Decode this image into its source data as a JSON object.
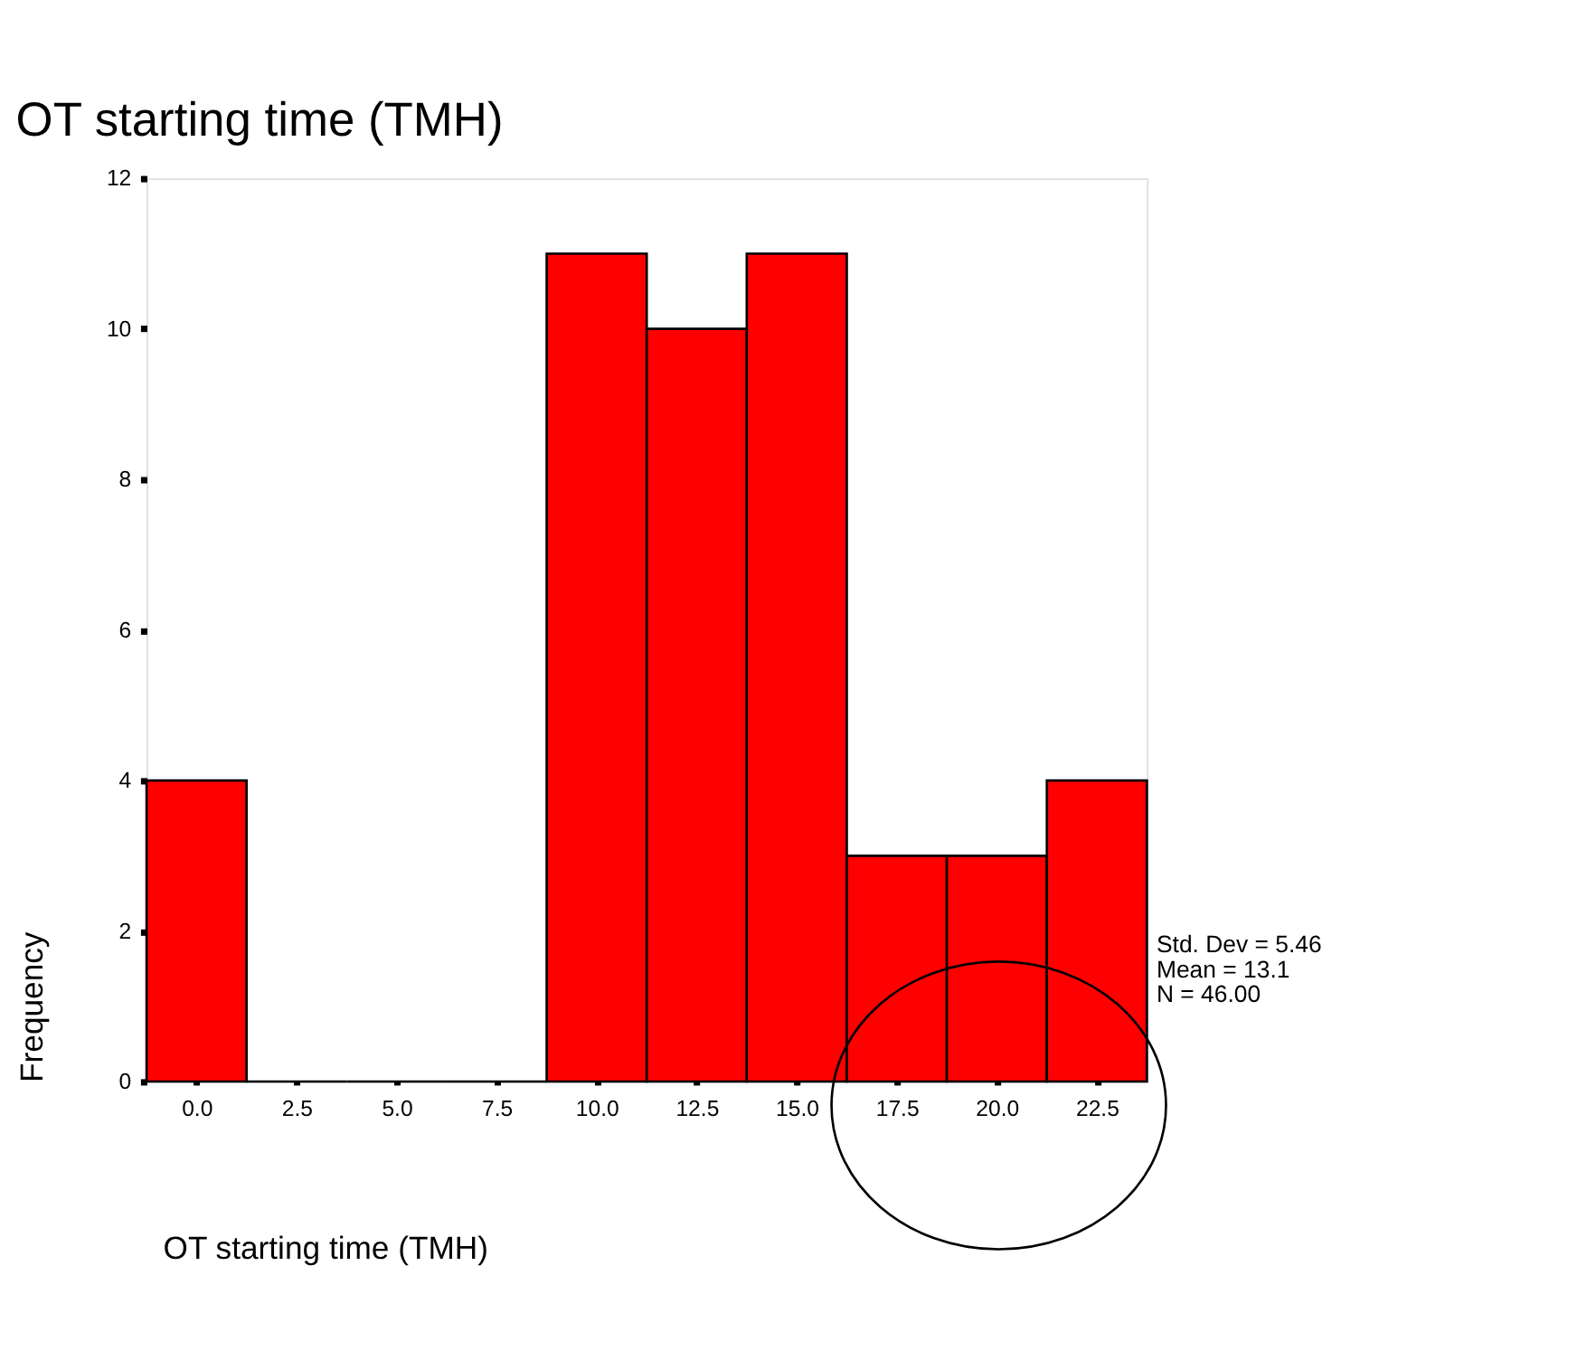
{
  "chart_data": {
    "type": "histogram",
    "title": "OT starting time (TMH)",
    "xlabel": "OT starting time (TMH)",
    "ylabel": "Frequency",
    "bins": [
      -1.25,
      1.25,
      3.75,
      6.25,
      8.75,
      11.25,
      13.75,
      16.25,
      18.75,
      21.25,
      23.75
    ],
    "values": [
      4,
      0,
      0,
      0,
      11,
      10,
      11,
      3,
      3,
      4
    ],
    "color": "#ff0000",
    "xlim": [
      -1.25,
      23.75
    ],
    "xticks": [
      {
        "value": 0,
        "label": "0.0"
      },
      {
        "value": 2.5,
        "label": "2.5"
      },
      {
        "value": 5,
        "label": "5.0"
      },
      {
        "value": 7.5,
        "label": "7.5"
      },
      {
        "value": 10,
        "label": "10.0"
      },
      {
        "value": 12.5,
        "label": "12.5"
      },
      {
        "value": 15,
        "label": "15.0"
      },
      {
        "value": 17.5,
        "label": "17.5"
      },
      {
        "value": 20,
        "label": "20.0"
      },
      {
        "value": 22.5,
        "label": "22.5"
      }
    ],
    "ylim": [
      0,
      12
    ],
    "yticks": [
      0,
      2,
      4,
      6,
      8,
      10,
      12
    ],
    "grid": false,
    "annotations": [
      "Std. Dev = 5.46",
      "Mean = 13.1",
      "N = 46.00"
    ]
  }
}
